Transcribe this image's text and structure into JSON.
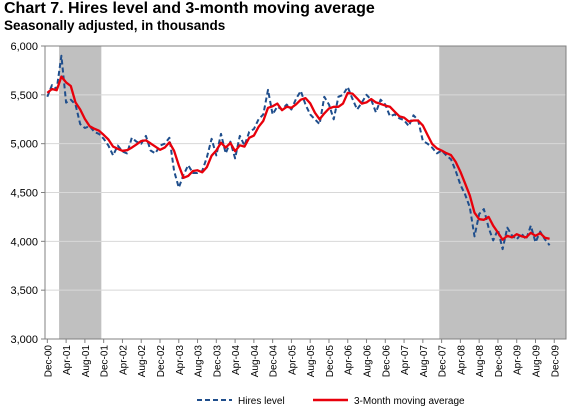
{
  "chart_data": {
    "type": "line",
    "title": "Chart 7. Hires level and 3-month moving average",
    "subtitle": "Seasonally adjusted, in thousands",
    "ylim": [
      3000,
      6000
    ],
    "yticks": [
      "3,000",
      "3,500",
      "4,000",
      "4,500",
      "5,000",
      "5,500",
      "6,000"
    ],
    "ytick_values": [
      3000,
      3500,
      4000,
      4500,
      5000,
      5500,
      6000
    ],
    "x_start": "Dec-00",
    "x_end": "Feb-10",
    "xtick_labels": [
      "Dec-00",
      "Apr-01",
      "Aug-01",
      "Dec-01",
      "Apr-02",
      "Aug-02",
      "Dec-02",
      "Apr-03",
      "Aug-03",
      "Dec-03",
      "Apr-04",
      "Aug-04",
      "Dec-04",
      "Apr-05",
      "Aug-05",
      "Dec-05",
      "Apr-06",
      "Aug-06",
      "Dec-06",
      "Apr-07",
      "Aug-07",
      "Dec-07",
      "Apr-08",
      "Aug-08",
      "Dec-08",
      "Apr-09",
      "Aug-09",
      "Dec-09"
    ],
    "recessions": [
      {
        "start": "Mar-01",
        "end": "Nov-01"
      },
      {
        "start": "Dec-07",
        "end": "Feb-10"
      }
    ],
    "colors": {
      "hires": "#1f4e8c",
      "moving_average": "#e8000b",
      "recession": "#c0c0c0"
    },
    "legend": {
      "position": "bottom"
    },
    "series": [
      {
        "name": "Hires level",
        "style": "dashed",
        "values": [
          5480,
          5600,
          5560,
          5900,
          5420,
          5450,
          5400,
          5200,
          5160,
          5180,
          5120,
          5100,
          5050,
          4980,
          4880,
          4980,
          4920,
          4900,
          5060,
          5020,
          5000,
          5080,
          4930,
          4900,
          4980,
          5000,
          5060,
          4720,
          4550,
          4680,
          4780,
          4700,
          4700,
          4720,
          4860,
          5050,
          4880,
          5100,
          4900,
          5020,
          4850,
          5080,
          4980,
          5120,
          5150,
          5250,
          5300,
          5550,
          5300,
          5380,
          5350,
          5400,
          5350,
          5460,
          5540,
          5400,
          5300,
          5250,
          5200,
          5480,
          5400,
          5250,
          5480,
          5500,
          5580,
          5460,
          5350,
          5420,
          5500,
          5450,
          5320,
          5450,
          5400,
          5280,
          5300,
          5260,
          5240,
          5180,
          5290,
          5240,
          5030,
          5000,
          4960,
          4900,
          4930,
          4880,
          4840,
          4720,
          4580,
          4480,
          4350,
          4050,
          4280,
          4330,
          4140,
          4010,
          4120,
          3920,
          4140,
          4060,
          4020,
          4080,
          4020,
          4160,
          3990,
          4100,
          4020,
          3960
        ]
      },
      {
        "name": "3-Month moving average",
        "style": "solid",
        "values": [
          5520,
          5560,
          5547,
          5687,
          5627,
          5590,
          5423,
          5350,
          5253,
          5180,
          5153,
          5133,
          5090,
          5043,
          4970,
          4947,
          4927,
          4933,
          4960,
          4993,
          5027,
          5033,
          5003,
          4970,
          4937,
          4960,
          5013,
          4927,
          4777,
          4650,
          4670,
          4720,
          4727,
          4707,
          4760,
          4877,
          4930,
          5010,
          4960,
          5007,
          4923,
          4983,
          4970,
          5060,
          5083,
          5173,
          5233,
          5367,
          5383,
          5410,
          5343,
          5377,
          5367,
          5403,
          5450,
          5467,
          5413,
          5317,
          5250,
          5310,
          5360,
          5377,
          5377,
          5410,
          5520,
          5513,
          5463,
          5410,
          5423,
          5457,
          5423,
          5407,
          5390,
          5377,
          5327,
          5280,
          5267,
          5227,
          5237,
          5237,
          5187,
          5090,
          4997,
          4953,
          4930,
          4903,
          4883,
          4813,
          4713,
          4593,
          4470,
          4293,
          4227,
          4220,
          4250,
          4160,
          4090,
          4017,
          4057,
          4040,
          4073,
          4053,
          4040,
          4087,
          4057,
          4083,
          4037,
          4027
        ]
      }
    ]
  }
}
